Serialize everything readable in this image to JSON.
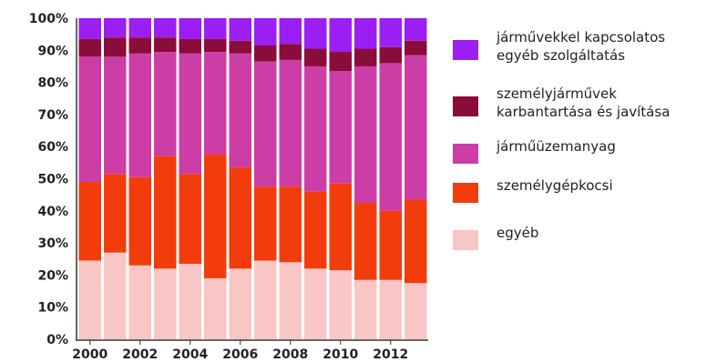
{
  "chart_data": {
    "type": "bar",
    "stacked": true,
    "percent_scale": true,
    "categories": [
      "2000",
      "2001",
      "2002",
      "2003",
      "2004",
      "2005",
      "2006",
      "2007",
      "2008",
      "2009",
      "2010",
      "2011",
      "2012",
      "2013"
    ],
    "x_tick_labels": [
      "2000",
      "2002",
      "2004",
      "2006",
      "2008",
      "2010",
      "2012"
    ],
    "y_tick_labels": [
      "0%",
      "10%",
      "20%",
      "30%",
      "40%",
      "50%",
      "60%",
      "70%",
      "80%",
      "90%",
      "100%"
    ],
    "ylim": [
      0,
      100
    ],
    "grid": false,
    "legend_position": "right",
    "series": [
      {
        "name": "egyéb",
        "color": "#f9c6c6",
        "values": [
          24.5,
          27,
          23,
          22,
          23.5,
          19,
          22,
          24.5,
          24,
          22,
          21.5,
          18.5,
          18.5,
          17.5
        ]
      },
      {
        "name": "személygépkocsi",
        "color": "#f23c0c",
        "values": [
          24.5,
          24.5,
          27.5,
          35,
          28,
          38.5,
          31.5,
          23,
          23.5,
          24,
          27,
          24,
          21.5,
          26
        ]
      },
      {
        "name": "járműüzemanyag",
        "color": "#cc3ea6",
        "values": [
          39,
          36.5,
          38.5,
          32.5,
          37.5,
          32,
          35.5,
          39,
          39.5,
          39,
          35,
          42.5,
          46,
          45
        ]
      },
      {
        "name": "személyjárművek karbantartása és javítása",
        "color": "#8a0c3a",
        "values": [
          5.5,
          6,
          5,
          4.5,
          4.5,
          4,
          4,
          5,
          5,
          5.5,
          6,
          5.5,
          5,
          4.5
        ]
      },
      {
        "name": "járművekkel kapcsolatos egyéb szolgáltatás",
        "color": "#9b1ff2",
        "values": [
          6.5,
          6,
          6,
          6,
          6.5,
          6.5,
          7,
          8.5,
          8,
          9.5,
          10.5,
          9.5,
          9,
          7
        ]
      }
    ],
    "legend": [
      {
        "series": 4,
        "lines": [
          "járművekkel kapcsolatos",
          "egyéb szolgáltatás"
        ]
      },
      {
        "series": 3,
        "lines": [
          "személyjárművek",
          "karbantartása és javítása"
        ]
      },
      {
        "series": 2,
        "lines": [
          "járműüzemanyag"
        ]
      },
      {
        "series": 1,
        "lines": [
          "személygépkocsi"
        ]
      },
      {
        "series": 0,
        "lines": [
          "egyéb"
        ]
      }
    ]
  }
}
